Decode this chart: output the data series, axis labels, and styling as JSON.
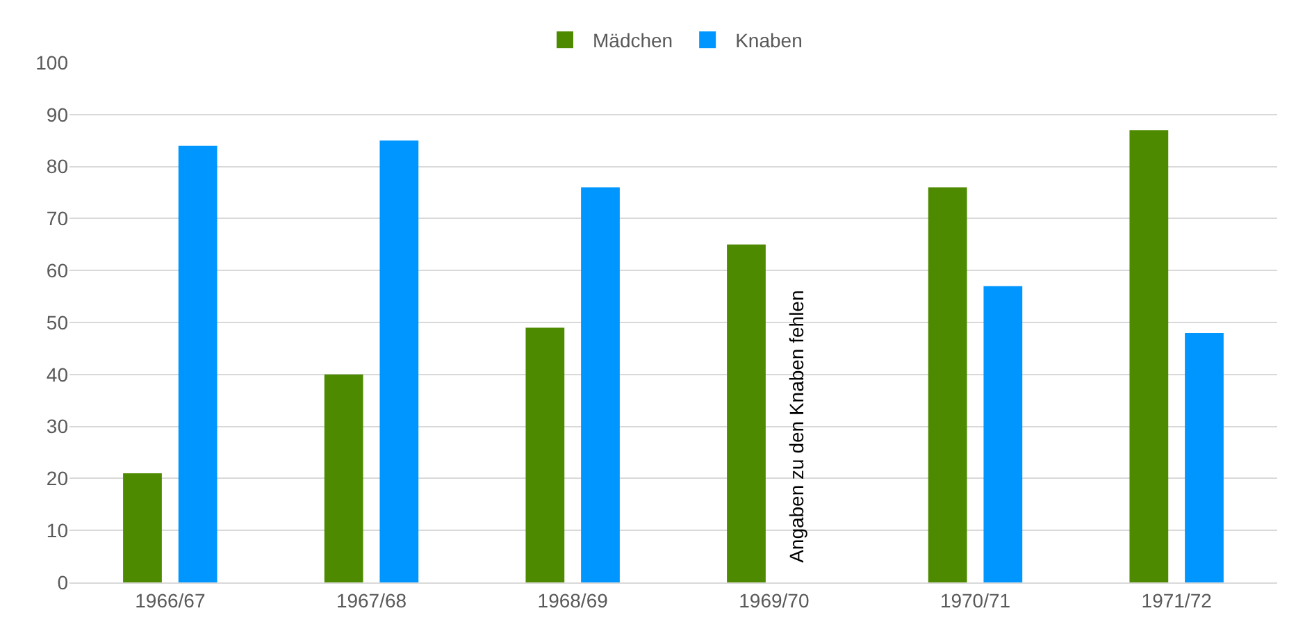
{
  "chart_data": {
    "type": "bar",
    "categories": [
      "1966/67",
      "1967/68",
      "1968/69",
      "1969/70",
      "1970/71",
      "1971/72"
    ],
    "series": [
      {
        "name": "Mädchen",
        "color": "#4e8a00",
        "values": [
          21,
          40,
          49,
          65,
          76,
          87
        ]
      },
      {
        "name": "Knaben",
        "color": "#0096ff",
        "values": [
          84,
          85,
          76,
          null,
          57,
          48
        ]
      }
    ],
    "ylim": [
      0,
      100
    ],
    "yticks": [
      0,
      10,
      20,
      30,
      40,
      50,
      60,
      70,
      80,
      90,
      100
    ],
    "grid": "y",
    "legend": "top",
    "annotations": [
      "Angaben zu den Knaben fehlen"
    ]
  }
}
